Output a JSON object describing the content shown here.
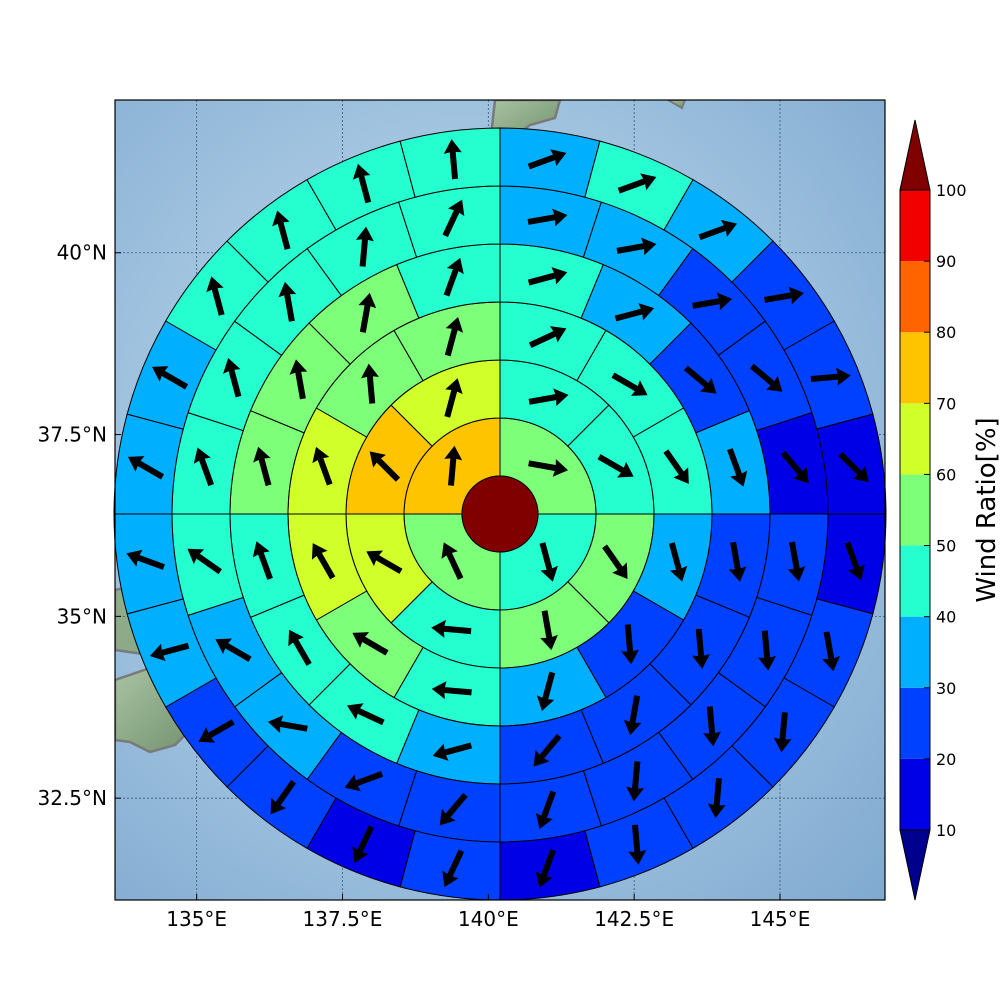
{
  "chart_data": {
    "type": "polar-sector-map",
    "colorbar": {
      "label": "Wind Ratio[%]",
      "ticks": [
        10,
        20,
        30,
        40,
        50,
        60,
        70,
        80,
        90,
        100
      ],
      "bins": [
        {
          "from": 0,
          "to": 10,
          "color": "#00008f"
        },
        {
          "from": 10,
          "to": 20,
          "color": "#0000e6"
        },
        {
          "from": 20,
          "to": 30,
          "color": "#0040ff"
        },
        {
          "from": 30,
          "to": 40,
          "color": "#00b0ff"
        },
        {
          "from": 40,
          "to": 50,
          "color": "#25ffd0"
        },
        {
          "from": 50,
          "to": 60,
          "color": "#7dff7a"
        },
        {
          "from": 60,
          "to": 70,
          "color": "#d0ff2a"
        },
        {
          "from": 70,
          "to": 80,
          "color": "#ffc400"
        },
        {
          "from": 80,
          "to": 90,
          "color": "#ff6400"
        },
        {
          "from": 90,
          "to": 100,
          "color": "#f20000"
        },
        {
          "from": 100,
          "to": 110,
          "color": "#800000"
        }
      ]
    },
    "x_axis": {
      "ticks": [
        135,
        137.5,
        140,
        142.5,
        145
      ],
      "tick_labels": [
        "135°E",
        "137.5°E",
        "140°E",
        "142.5°E",
        "145°E"
      ],
      "range": [
        133.6,
        146.8
      ]
    },
    "y_axis": {
      "ticks": [
        32.5,
        35,
        37.5,
        40
      ],
      "tick_labels": [
        "32.5°N",
        "35°N",
        "37.5°N",
        "40°N"
      ],
      "range": [
        31.1,
        42.1
      ]
    },
    "grid": true,
    "center_value": 100,
    "rings": [
      {
        "sectors": 4,
        "values": [
          55,
          45,
          55,
          75
        ],
        "arrows": [
          100,
          165,
          335,
          5
        ]
      },
      {
        "sectors": 8,
        "values": [
          45,
          40,
          50,
          50,
          45,
          60,
          75,
          65
        ],
        "arrows": [
          80,
          120,
          145,
          170,
          275,
          300,
          315,
          15
        ]
      },
      {
        "sectors": 12,
        "values": [
          45,
          40,
          40,
          35,
          25,
          35,
          45,
          55,
          60,
          60,
          50,
          55
        ],
        "arrows": [
          65,
          120,
          145,
          165,
          175,
          195,
          275,
          300,
          330,
          340,
          355,
          15
        ]
      },
      {
        "sectors": 16,
        "values": [
          40,
          35,
          25,
          30,
          20,
          20,
          20,
          20,
          30,
          40,
          45,
          45,
          55,
          55,
          50,
          45
        ],
        "arrows": [
          75,
          75,
          130,
          160,
          170,
          175,
          190,
          220,
          255,
          295,
          330,
          340,
          345,
          350,
          10,
          20
        ]
      },
      {
        "sectors": 20,
        "values": [
          35,
          35,
          20,
          20,
          15,
          20,
          20,
          20,
          20,
          20,
          20,
          20,
          35,
          35,
          40,
          45,
          45,
          45,
          45,
          40
        ],
        "arrows": [
          80,
          80,
          80,
          130,
          140,
          170,
          175,
          175,
          185,
          200,
          220,
          250,
          280,
          300,
          305,
          340,
          345,
          350,
          5,
          25
        ]
      },
      {
        "sectors": 24,
        "values": [
          35,
          40,
          35,
          25,
          20,
          15,
          15,
          20,
          20,
          20,
          20,
          15,
          20,
          15,
          20,
          20,
          30,
          30,
          35,
          35,
          45,
          45,
          45,
          40
        ],
        "arrows": [
          70,
          70,
          70,
          80,
          85,
          135,
          160,
          170,
          185,
          185,
          175,
          200,
          205,
          205,
          215,
          240,
          255,
          290,
          300,
          300,
          345,
          345,
          345,
          355
        ]
      }
    ]
  }
}
